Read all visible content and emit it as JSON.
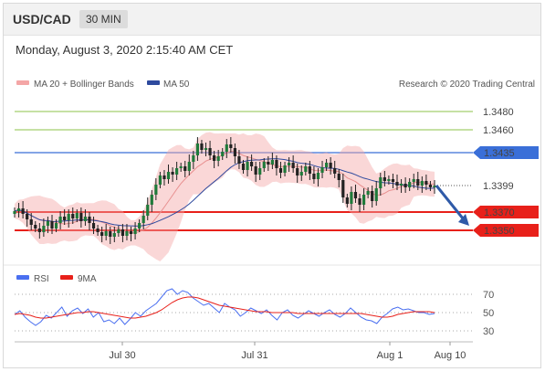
{
  "header": {
    "symbol": "USD/CAD",
    "timeframe": "30 MIN"
  },
  "date_line": "Monday, August 3, 2020 2:15:40 AM CET",
  "legend": {
    "ma20_bb": "MA 20 + Bollinger Bands",
    "ma50": "MA 50",
    "copyright": "Research © 2020 Trading Central",
    "rsi": "RSI",
    "ma9": "9MA"
  },
  "colors": {
    "bollinger": "#f4a6a6",
    "ma50": "#2e4a9e",
    "level_green": "#8cc34a",
    "level_blue": "#3a6fd8",
    "level_red": "#e8201a",
    "candle_up": "#1f7a3a",
    "candle_down": "#222222",
    "rsi": "#4a6ff0",
    "ma9_rsi": "#e8201a",
    "arrow": "#2f5aa8"
  },
  "chart_data": [
    {
      "type": "candlestick",
      "title": "USD/CAD",
      "x_tick_labels": [
        "Jul 30",
        "Jul 31",
        "Aug 1",
        "Aug 10"
      ],
      "price_levels": [
        {
          "value": 1.348,
          "label": "1.3480",
          "style": "green"
        },
        {
          "value": 1.346,
          "label": "1.3460",
          "style": "green"
        },
        {
          "value": 1.3435,
          "label": "1.3435",
          "style": "blue"
        },
        {
          "value": 1.3399,
          "label": "1.3399",
          "style": "current"
        },
        {
          "value": 1.337,
          "label": "1.3370",
          "style": "red"
        },
        {
          "value": 1.335,
          "label": "1.3350",
          "style": "red"
        }
      ],
      "ylim": [
        1.332,
        1.35
      ],
      "close_series": [
        1.3371,
        1.3374,
        1.3368,
        1.3362,
        1.3356,
        1.3352,
        1.3348,
        1.3355,
        1.336,
        1.3352,
        1.3358,
        1.3365,
        1.3361,
        1.3368,
        1.3363,
        1.3369,
        1.336,
        1.3365,
        1.3358,
        1.3352,
        1.3348,
        1.3344,
        1.3349,
        1.3343,
        1.3347,
        1.3351,
        1.3344,
        1.3349,
        1.3346,
        1.3352,
        1.3358,
        1.3366,
        1.3378,
        1.3389,
        1.34,
        1.341,
        1.3406,
        1.3414,
        1.3411,
        1.3418,
        1.342,
        1.3415,
        1.3425,
        1.3432,
        1.3445,
        1.3438,
        1.344,
        1.3432,
        1.3426,
        1.3431,
        1.3436,
        1.3444,
        1.344,
        1.3431,
        1.3423,
        1.3416,
        1.3425,
        1.342,
        1.3411,
        1.3418,
        1.3425,
        1.3422,
        1.3427,
        1.3418,
        1.3413,
        1.3421,
        1.3424,
        1.3418,
        1.341,
        1.3414,
        1.342,
        1.3412,
        1.3406,
        1.3413,
        1.3419,
        1.3424,
        1.3418,
        1.3412,
        1.3405,
        1.3386,
        1.3379,
        1.3392,
        1.3385,
        1.3378,
        1.3389,
        1.3393,
        1.3382,
        1.3396,
        1.3408,
        1.3404,
        1.3406,
        1.3403,
        1.3399,
        1.3401,
        1.3397,
        1.3403,
        1.3406,
        1.3399,
        1.3404,
        1.34,
        1.3397,
        1.3399
      ],
      "forecast_arrow": {
        "from": 1.3399,
        "to": 1.3355
      },
      "rsi": {
        "levels": [
          70,
          50,
          30
        ],
        "ylim": [
          20,
          80
        ],
        "rsi_values": [
          48,
          52,
          45,
          40,
          36,
          40,
          47,
          44,
          50,
          56,
          46,
          52,
          55,
          49,
          54,
          45,
          50,
          40,
          42,
          38,
          44,
          37,
          43,
          50,
          46,
          52,
          56,
          60,
          67,
          74,
          76,
          70,
          74,
          72,
          66,
          62,
          58,
          60,
          55,
          50,
          60,
          56,
          53,
          46,
          50,
          55,
          52,
          49,
          53,
          47,
          42,
          50,
          53,
          47,
          44,
          48,
          52,
          49,
          46,
          50,
          53,
          48,
          45,
          49,
          55,
          50,
          45,
          42,
          41,
          38,
          45,
          49,
          54,
          56,
          53,
          54,
          52,
          50,
          50,
          48,
          49
        ],
        "ma9_values": [
          48,
          49,
          48,
          47,
          45,
          44,
          44,
          45,
          46,
          47,
          48,
          49,
          50,
          50,
          51,
          51,
          50,
          49,
          48,
          47,
          46,
          45,
          44,
          44,
          45,
          46,
          48,
          50,
          53,
          57,
          61,
          64,
          66,
          67,
          67,
          66,
          64,
          62,
          60,
          58,
          57,
          56,
          55,
          54,
          53,
          52,
          51,
          51,
          51,
          50,
          50,
          50,
          50,
          50,
          49,
          49,
          49,
          49,
          49,
          49,
          49,
          49,
          49,
          49,
          49,
          49,
          49,
          48,
          47,
          46,
          45,
          45,
          46,
          48,
          49,
          50,
          51,
          51,
          51,
          51,
          50
        ]
      },
      "legend": [
        {
          "name": "MA 20 + Bollinger Bands",
          "color": "#f4a6a6"
        },
        {
          "name": "MA 50",
          "color": "#2e4a9e"
        },
        {
          "name": "RSI",
          "color": "#4a6ff0"
        },
        {
          "name": "9MA",
          "color": "#e8201a"
        }
      ]
    }
  ]
}
